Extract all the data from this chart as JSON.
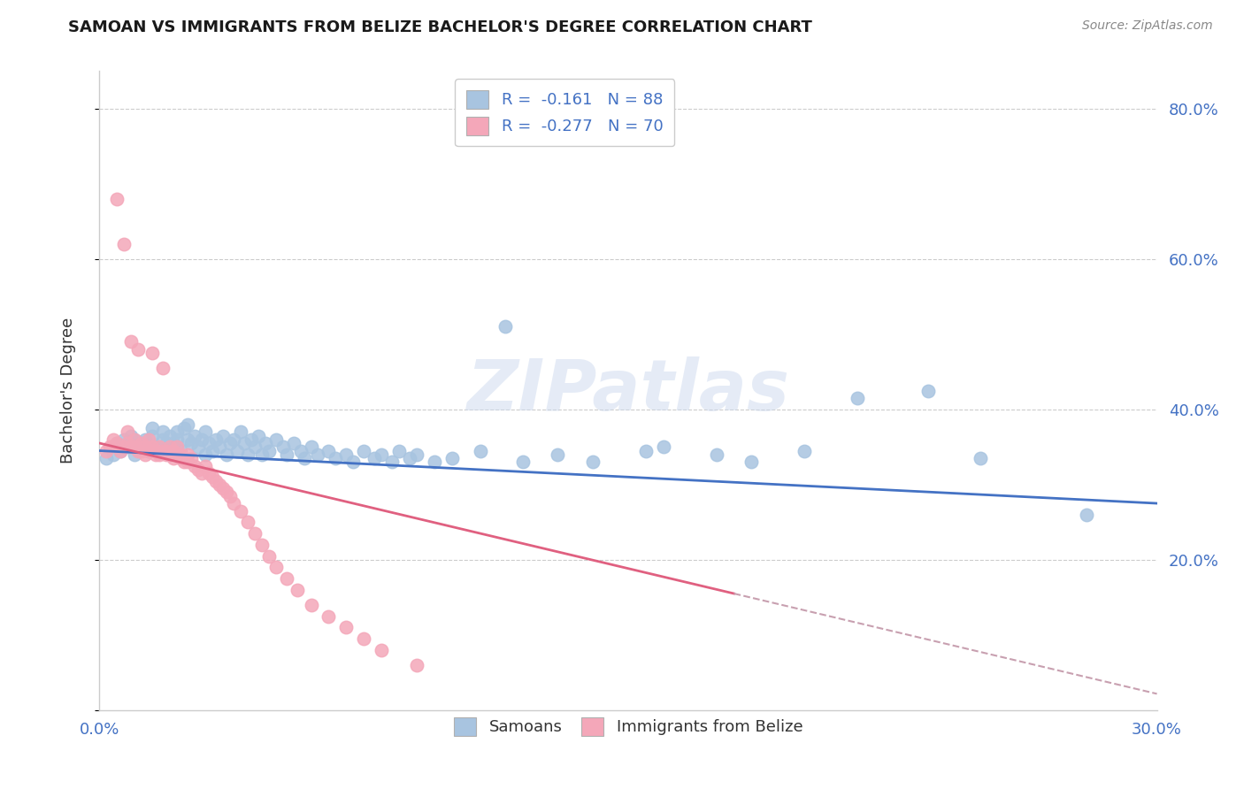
{
  "title": "SAMOAN VS IMMIGRANTS FROM BELIZE BACHELOR'S DEGREE CORRELATION CHART",
  "source": "Source: ZipAtlas.com",
  "ylabel": "Bachelor's Degree",
  "watermark": "ZIPatlas",
  "legend_blue_label": "R =  -0.161   N = 88",
  "legend_pink_label": "R =  -0.277   N = 70",
  "samoans_color": "#a8c4e0",
  "belize_color": "#f4a7b9",
  "blue_line_color": "#4472c4",
  "pink_line_color": "#e06080",
  "pink_dash_color": "#c8a0b0",
  "legend_label_samoans": "Samoans",
  "legend_label_belize": "Immigrants from Belize",
  "xlim": [
    0.0,
    0.3
  ],
  "ylim": [
    0.0,
    0.85
  ],
  "samoans_x": [
    0.002,
    0.004,
    0.005,
    0.006,
    0.007,
    0.008,
    0.009,
    0.01,
    0.01,
    0.011,
    0.012,
    0.013,
    0.014,
    0.015,
    0.015,
    0.016,
    0.017,
    0.018,
    0.018,
    0.019,
    0.02,
    0.02,
    0.021,
    0.022,
    0.022,
    0.023,
    0.024,
    0.025,
    0.025,
    0.026,
    0.027,
    0.028,
    0.029,
    0.03,
    0.03,
    0.031,
    0.032,
    0.033,
    0.034,
    0.035,
    0.036,
    0.037,
    0.038,
    0.039,
    0.04,
    0.041,
    0.042,
    0.043,
    0.044,
    0.045,
    0.046,
    0.047,
    0.048,
    0.05,
    0.052,
    0.053,
    0.055,
    0.057,
    0.058,
    0.06,
    0.062,
    0.065,
    0.067,
    0.07,
    0.072,
    0.075,
    0.078,
    0.08,
    0.083,
    0.085,
    0.088,
    0.09,
    0.095,
    0.1,
    0.108,
    0.115,
    0.12,
    0.13,
    0.14,
    0.155,
    0.16,
    0.175,
    0.185,
    0.2,
    0.215,
    0.235,
    0.25,
    0.28
  ],
  "samoans_y": [
    0.335,
    0.34,
    0.355,
    0.345,
    0.36,
    0.35,
    0.365,
    0.34,
    0.36,
    0.35,
    0.355,
    0.36,
    0.345,
    0.365,
    0.375,
    0.35,
    0.345,
    0.36,
    0.37,
    0.355,
    0.34,
    0.365,
    0.355,
    0.36,
    0.37,
    0.345,
    0.375,
    0.36,
    0.38,
    0.355,
    0.365,
    0.35,
    0.36,
    0.34,
    0.37,
    0.355,
    0.345,
    0.36,
    0.35,
    0.365,
    0.34,
    0.355,
    0.36,
    0.345,
    0.37,
    0.355,
    0.34,
    0.36,
    0.35,
    0.365,
    0.34,
    0.355,
    0.345,
    0.36,
    0.35,
    0.34,
    0.355,
    0.345,
    0.335,
    0.35,
    0.34,
    0.345,
    0.335,
    0.34,
    0.33,
    0.345,
    0.335,
    0.34,
    0.33,
    0.345,
    0.335,
    0.34,
    0.33,
    0.335,
    0.345,
    0.51,
    0.33,
    0.34,
    0.33,
    0.345,
    0.35,
    0.34,
    0.33,
    0.345,
    0.415,
    0.425,
    0.335,
    0.26
  ],
  "belize_x": [
    0.002,
    0.003,
    0.004,
    0.005,
    0.005,
    0.006,
    0.007,
    0.007,
    0.008,
    0.008,
    0.009,
    0.009,
    0.01,
    0.01,
    0.011,
    0.011,
    0.012,
    0.012,
    0.013,
    0.013,
    0.014,
    0.014,
    0.015,
    0.015,
    0.016,
    0.016,
    0.017,
    0.017,
    0.018,
    0.018,
    0.019,
    0.019,
    0.02,
    0.02,
    0.021,
    0.021,
    0.022,
    0.022,
    0.023,
    0.023,
    0.024,
    0.025,
    0.025,
    0.026,
    0.027,
    0.028,
    0.029,
    0.03,
    0.031,
    0.032,
    0.033,
    0.034,
    0.035,
    0.036,
    0.037,
    0.038,
    0.04,
    0.042,
    0.044,
    0.046,
    0.048,
    0.05,
    0.053,
    0.056,
    0.06,
    0.065,
    0.07,
    0.075,
    0.08,
    0.09
  ],
  "belize_y": [
    0.345,
    0.35,
    0.36,
    0.68,
    0.355,
    0.345,
    0.62,
    0.35,
    0.37,
    0.355,
    0.49,
    0.35,
    0.36,
    0.35,
    0.48,
    0.345,
    0.355,
    0.345,
    0.35,
    0.34,
    0.36,
    0.345,
    0.35,
    0.475,
    0.34,
    0.345,
    0.35,
    0.34,
    0.345,
    0.455,
    0.34,
    0.345,
    0.35,
    0.34,
    0.345,
    0.335,
    0.34,
    0.35,
    0.34,
    0.335,
    0.33,
    0.34,
    0.33,
    0.335,
    0.325,
    0.32,
    0.315,
    0.325,
    0.315,
    0.31,
    0.305,
    0.3,
    0.295,
    0.29,
    0.285,
    0.275,
    0.265,
    0.25,
    0.235,
    0.22,
    0.205,
    0.19,
    0.175,
    0.16,
    0.14,
    0.125,
    0.11,
    0.095,
    0.08,
    0.06
  ]
}
